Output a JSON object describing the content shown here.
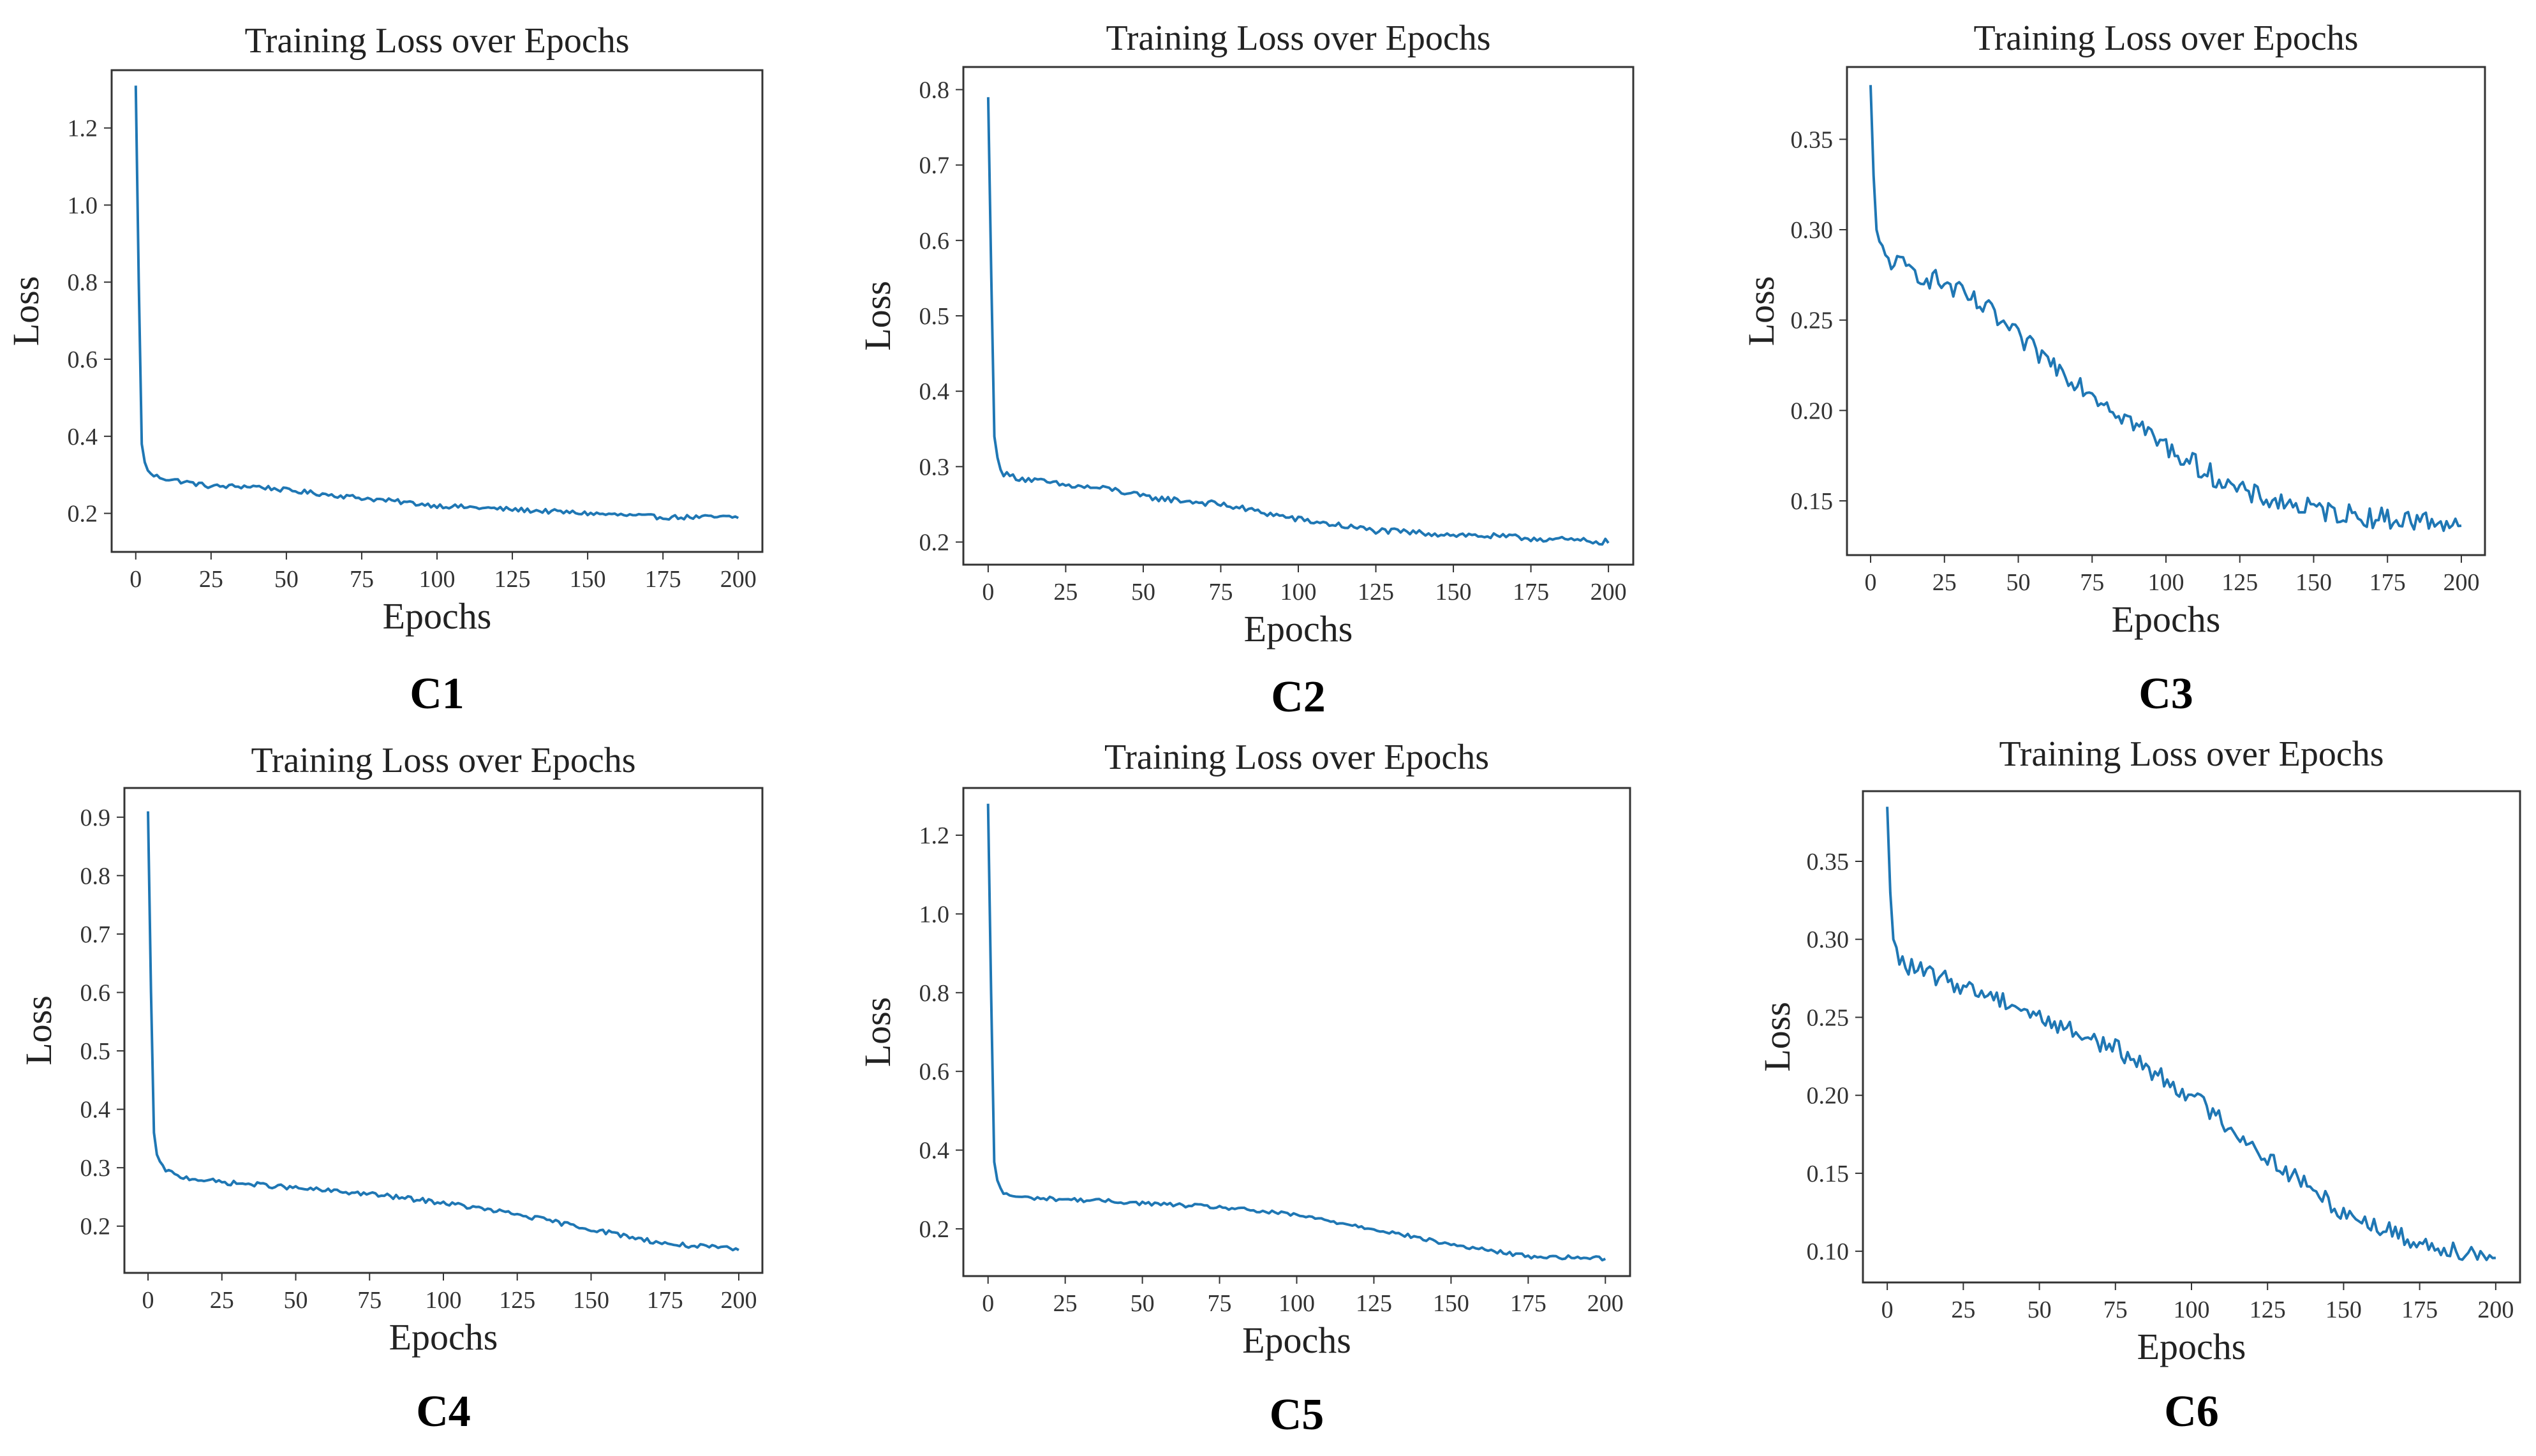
{
  "figure": {
    "description_id": "training-loss-grid"
  },
  "chart_data": [
    {
      "type": "line",
      "panel_label": "C1",
      "title": "Training Loss over Epochs",
      "xlabel": "Epochs",
      "ylabel": "Loss",
      "xlim": [
        -8,
        208
      ],
      "ylim": [
        0.1,
        1.35
      ],
      "xticks": [
        0,
        25,
        50,
        75,
        100,
        125,
        150,
        175,
        200
      ],
      "yticks": [
        0.2,
        0.4,
        0.6,
        0.8,
        1.0,
        1.2
      ],
      "ytick_labels": [
        "0.2",
        "0.4",
        "0.6",
        "0.8",
        "1.0",
        "1.2"
      ],
      "series": [
        {
          "name": "loss",
          "color": "#1f77b4",
          "x": [
            0,
            1,
            2,
            3,
            5,
            10,
            25,
            40,
            50,
            75,
            100,
            125,
            150,
            175,
            200
          ],
          "y": [
            1.31,
            0.8,
            0.38,
            0.33,
            0.3,
            0.29,
            0.27,
            0.27,
            0.26,
            0.24,
            0.22,
            0.21,
            0.2,
            0.19,
            0.19
          ],
          "noise": 0.006
        }
      ]
    },
    {
      "type": "line",
      "panel_label": "C2",
      "title": "Training Loss over Epochs",
      "xlabel": "Epochs",
      "ylabel": "Loss",
      "xlim": [
        -8,
        208
      ],
      "ylim": [
        0.17,
        0.83
      ],
      "xticks": [
        0,
        25,
        50,
        75,
        100,
        125,
        150,
        175,
        200
      ],
      "yticks": [
        0.2,
        0.3,
        0.4,
        0.5,
        0.6,
        0.7,
        0.8
      ],
      "ytick_labels": [
        "0.2",
        "0.3",
        "0.4",
        "0.5",
        "0.6",
        "0.7",
        "0.8"
      ],
      "series": [
        {
          "name": "loss",
          "color": "#1f77b4",
          "x": [
            0,
            1,
            2,
            3,
            5,
            10,
            25,
            40,
            50,
            75,
            100,
            125,
            150,
            175,
            200
          ],
          "y": [
            0.79,
            0.55,
            0.34,
            0.31,
            0.29,
            0.285,
            0.275,
            0.27,
            0.26,
            0.25,
            0.23,
            0.215,
            0.21,
            0.205,
            0.2
          ],
          "noise": 0.004
        }
      ]
    },
    {
      "type": "line",
      "panel_label": "C3",
      "title": "Training Loss over Epochs",
      "xlabel": "Epochs",
      "ylabel": "Loss",
      "xlim": [
        -8,
        208
      ],
      "ylim": [
        0.12,
        0.39
      ],
      "xticks": [
        0,
        25,
        50,
        75,
        100,
        125,
        150,
        175,
        200
      ],
      "yticks": [
        0.15,
        0.2,
        0.25,
        0.3,
        0.35
      ],
      "ytick_labels": [
        "0.15",
        "0.20",
        "0.25",
        "0.30",
        "0.35"
      ],
      "series": [
        {
          "name": "loss",
          "color": "#1f77b4",
          "x": [
            0,
            1,
            2,
            3,
            5,
            10,
            25,
            40,
            50,
            75,
            100,
            125,
            150,
            175,
            200
          ],
          "y": [
            0.38,
            0.33,
            0.3,
            0.29,
            0.285,
            0.28,
            0.27,
            0.255,
            0.24,
            0.21,
            0.18,
            0.155,
            0.145,
            0.14,
            0.138
          ],
          "noise": 0.006
        }
      ]
    },
    {
      "type": "line",
      "panel_label": "C4",
      "title": "Training Loss over Epochs",
      "xlabel": "Epochs",
      "ylabel": "Loss",
      "xlim": [
        -8,
        208
      ],
      "ylim": [
        0.12,
        0.95
      ],
      "xticks": [
        0,
        25,
        50,
        75,
        100,
        125,
        150,
        175,
        200
      ],
      "yticks": [
        0.2,
        0.3,
        0.4,
        0.5,
        0.6,
        0.7,
        0.8,
        0.9
      ],
      "ytick_labels": [
        "0.2",
        "0.3",
        "0.4",
        "0.5",
        "0.6",
        "0.7",
        "0.8",
        "0.9"
      ],
      "series": [
        {
          "name": "loss",
          "color": "#1f77b4",
          "x": [
            0,
            1,
            2,
            3,
            5,
            10,
            25,
            40,
            50,
            75,
            100,
            125,
            150,
            175,
            200
          ],
          "y": [
            0.91,
            0.6,
            0.36,
            0.32,
            0.3,
            0.285,
            0.275,
            0.27,
            0.265,
            0.255,
            0.24,
            0.22,
            0.195,
            0.17,
            0.16
          ],
          "noise": 0.004
        }
      ]
    },
    {
      "type": "line",
      "panel_label": "C5",
      "title": "Training Loss over Epochs",
      "xlabel": "Epochs",
      "ylabel": "Loss",
      "xlim": [
        -8,
        208
      ],
      "ylim": [
        0.08,
        1.32
      ],
      "xticks": [
        0,
        25,
        50,
        75,
        100,
        125,
        150,
        175,
        200
      ],
      "yticks": [
        0.2,
        0.4,
        0.6,
        0.8,
        1.0,
        1.2
      ],
      "ytick_labels": [
        "0.2",
        "0.4",
        "0.6",
        "0.8",
        "1.0",
        "1.2"
      ],
      "series": [
        {
          "name": "loss",
          "color": "#1f77b4",
          "x": [
            0,
            1,
            2,
            3,
            5,
            10,
            25,
            40,
            50,
            75,
            100,
            125,
            150,
            175,
            200
          ],
          "y": [
            1.28,
            0.8,
            0.37,
            0.32,
            0.29,
            0.28,
            0.275,
            0.27,
            0.265,
            0.255,
            0.235,
            0.2,
            0.16,
            0.13,
            0.125
          ],
          "noise": 0.005
        }
      ]
    },
    {
      "type": "line",
      "panel_label": "C6",
      "title": "Training Loss over Epochs",
      "xlabel": "Epochs",
      "ylabel": "Loss",
      "xlim": [
        -8,
        208
      ],
      "ylim": [
        0.08,
        0.395
      ],
      "xticks": [
        0,
        25,
        50,
        75,
        100,
        125,
        150,
        175,
        200
      ],
      "yticks": [
        0.1,
        0.15,
        0.2,
        0.25,
        0.3,
        0.35
      ],
      "ytick_labels": [
        "0.10",
        "0.15",
        "0.20",
        "0.25",
        "0.30",
        "0.35"
      ],
      "series": [
        {
          "name": "loss",
          "color": "#1f77b4",
          "x": [
            0,
            1,
            2,
            3,
            5,
            10,
            25,
            40,
            50,
            75,
            100,
            125,
            150,
            175,
            200
          ],
          "y": [
            0.385,
            0.33,
            0.3,
            0.29,
            0.285,
            0.28,
            0.27,
            0.26,
            0.25,
            0.23,
            0.2,
            0.16,
            0.125,
            0.105,
            0.097
          ],
          "noise": 0.006
        }
      ]
    }
  ]
}
